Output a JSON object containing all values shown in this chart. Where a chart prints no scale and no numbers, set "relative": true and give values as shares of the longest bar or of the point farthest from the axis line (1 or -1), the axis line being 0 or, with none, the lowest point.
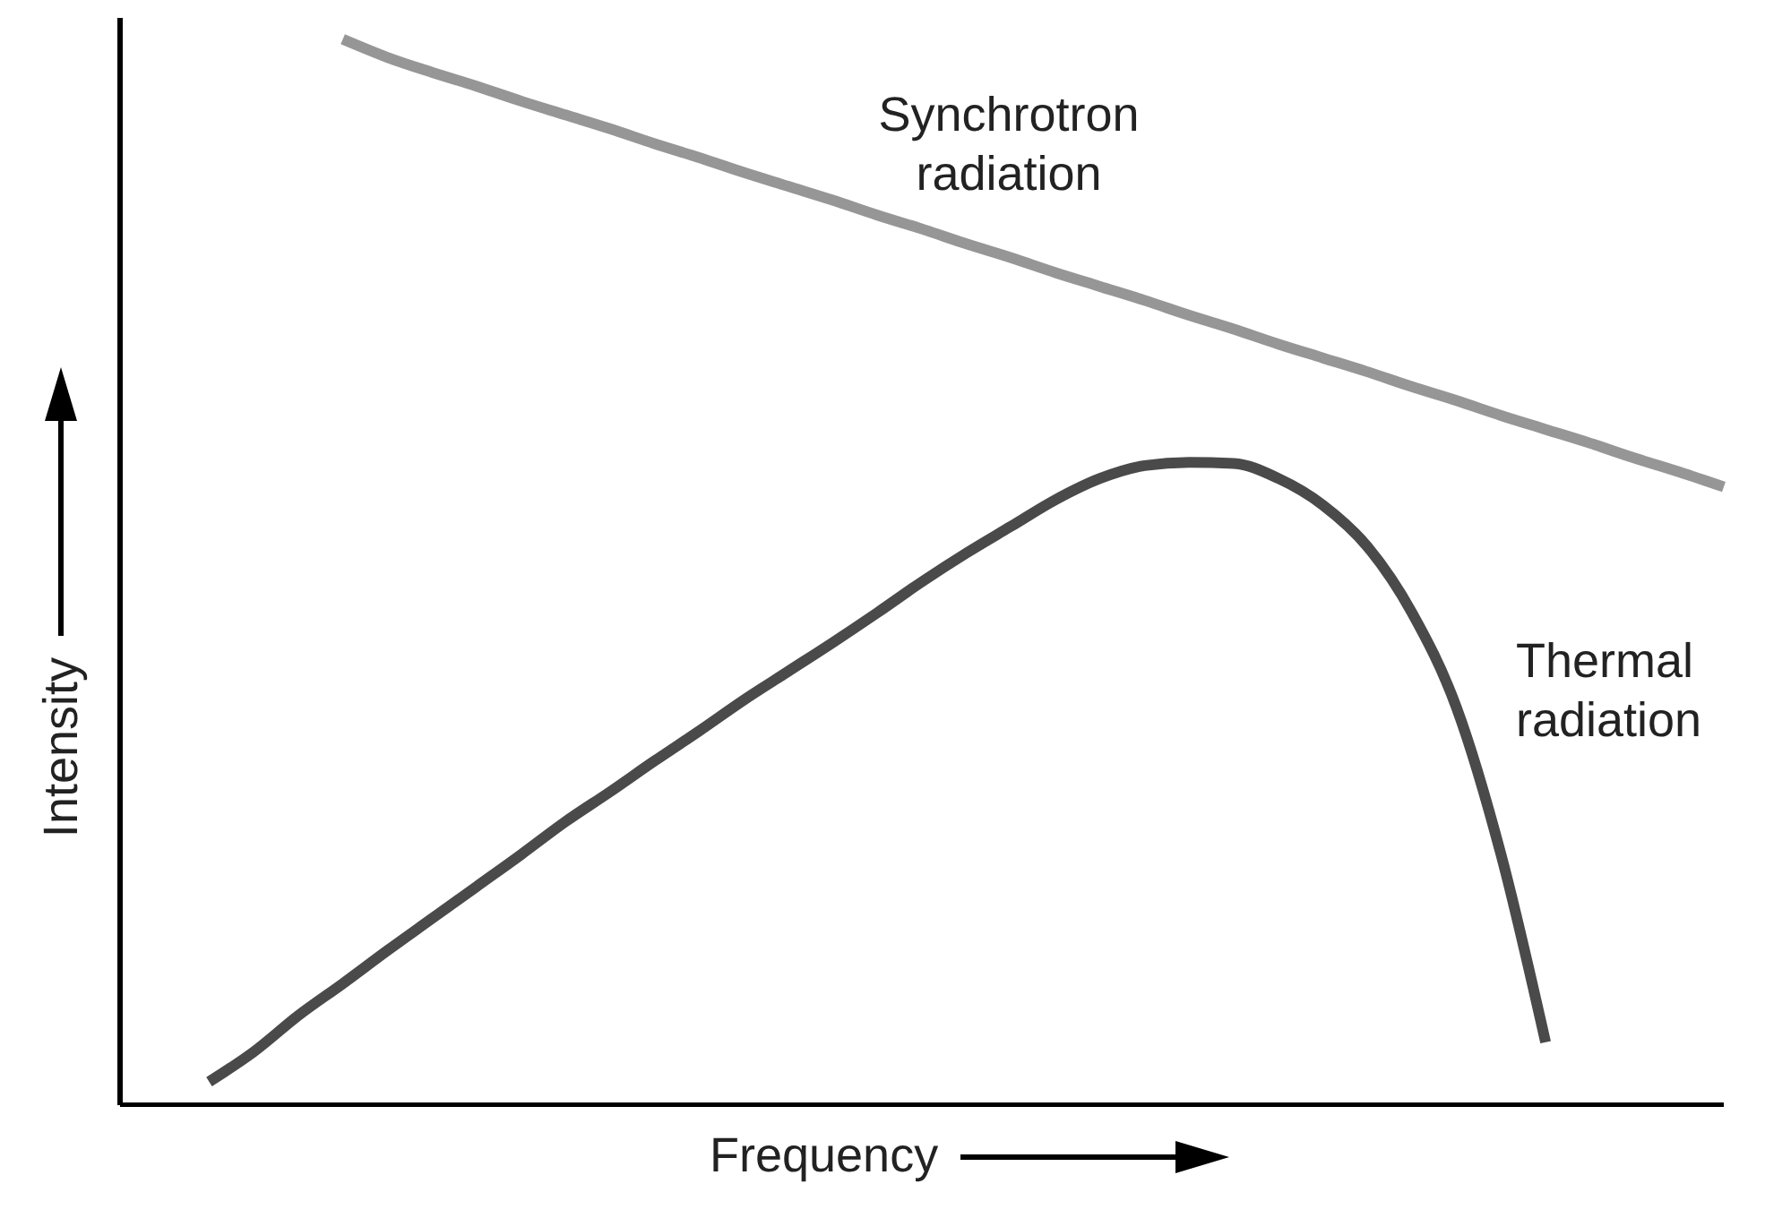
{
  "chart_data": {
    "type": "line",
    "relative": true,
    "xlabel": "Frequency",
    "ylabel": "Intensity",
    "legend": false,
    "grid": false,
    "marker": "none",
    "line_style": "solid",
    "categories": [
      null,
      null,
      null,
      null,
      null,
      null,
      null,
      null,
      null,
      null,
      null,
      null,
      null,
      null,
      null,
      null,
      null,
      null,
      null,
      null,
      null,
      null,
      null,
      null,
      null,
      null,
      null,
      null,
      null,
      null,
      null,
      null,
      null,
      null,
      null,
      null,
      null
    ],
    "series": [
      {
        "name": "Synchrotron radiation",
        "color": "#969696",
        "values": [
          null,
          null,
          null,
          null,
          null,
          1,
          0.983,
          0.969,
          0.956,
          0.942,
          0.929,
          0.916,
          0.902,
          0.889,
          0.875,
          0.862,
          0.849,
          0.835,
          0.822,
          0.808,
          0.795,
          0.781,
          0.768,
          0.755,
          0.741,
          0.728,
          0.714,
          0.701,
          0.688,
          0.674,
          0.661,
          0.647,
          0.634,
          0.621,
          0.607,
          0.594,
          0.58
        ]
      },
      {
        "name": "Thermal radiation",
        "color": "#4a4a4a",
        "values": [
          null,
          null,
          0.022,
          0.05,
          0.084,
          0.114,
          0.145,
          0.175,
          0.205,
          0.235,
          0.266,
          0.294,
          0.323,
          0.351,
          0.38,
          0.407,
          0.434,
          0.462,
          0.491,
          0.518,
          0.543,
          0.568,
          0.588,
          0.6,
          0.603,
          0.602,
          0.588,
          0.563,
          0.524,
          0.462,
          0.373,
          0.235,
          0.059,
          null,
          null,
          null,
          null
        ]
      }
    ]
  }
}
